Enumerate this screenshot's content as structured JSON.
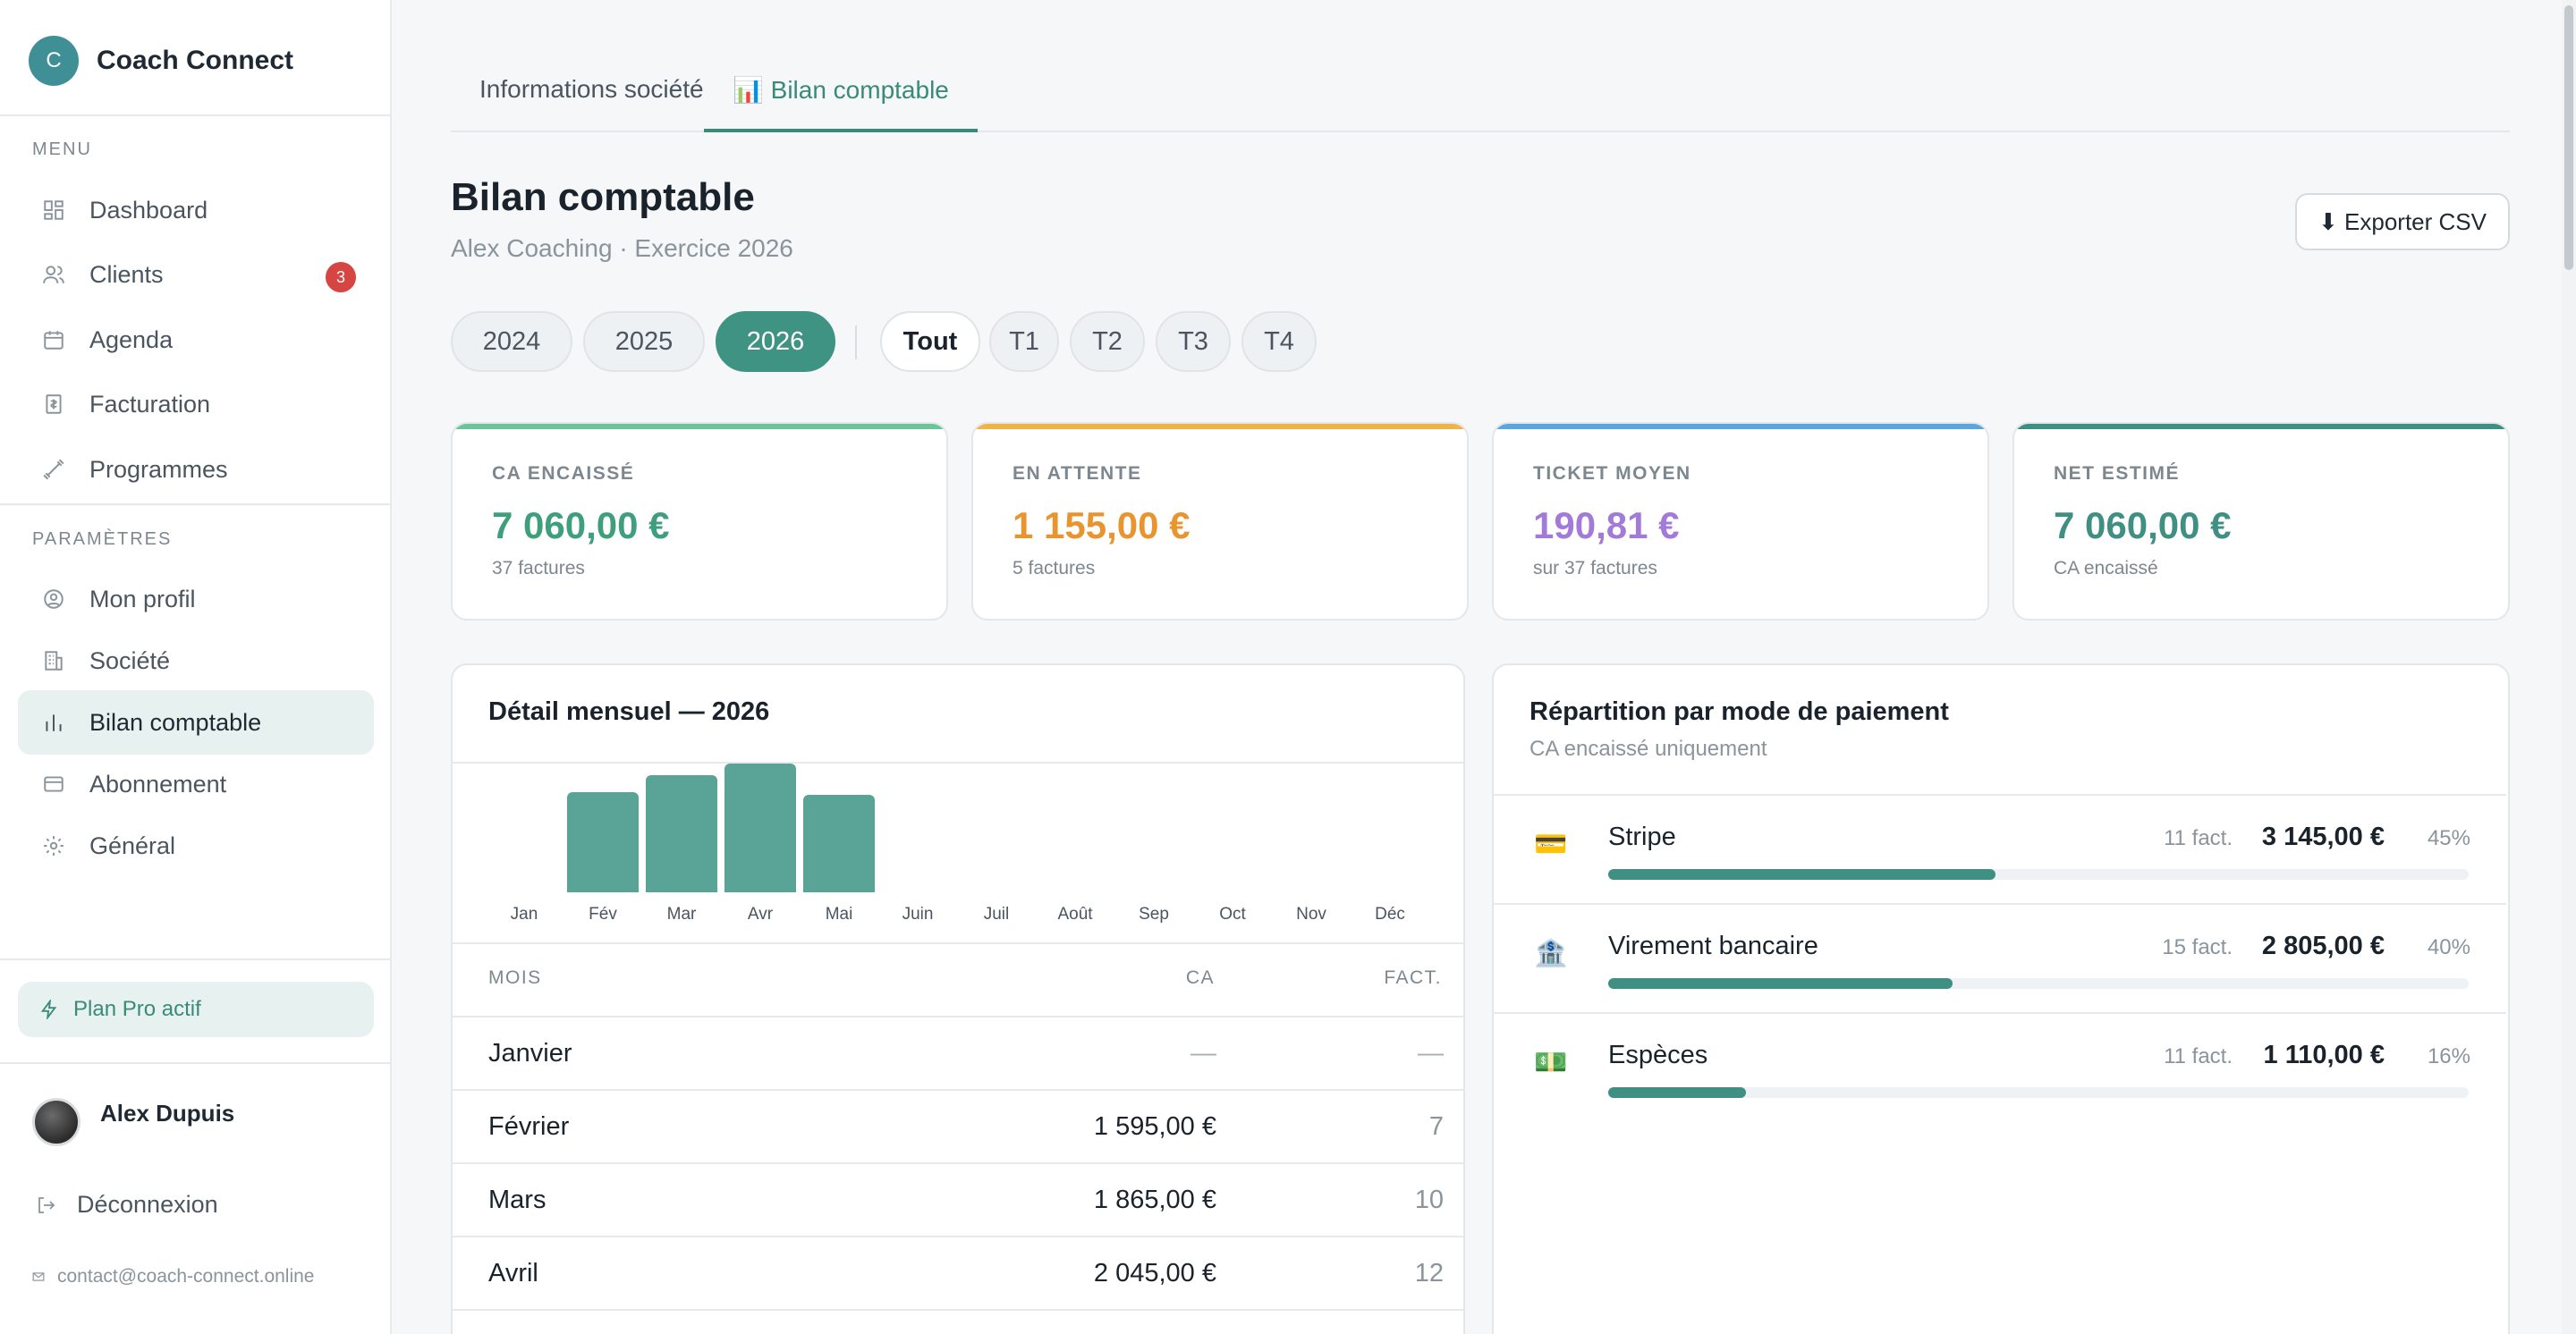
{
  "app": {
    "brand_initial": "C",
    "brand_name": "Coach Connect"
  },
  "sidebar": {
    "menu_label": "MENU",
    "settings_label": "PARAMÈTRES",
    "menu_items": [
      {
        "label": "Dashboard",
        "icon": "dashboard-icon"
      },
      {
        "label": "Clients",
        "icon": "users-icon",
        "badge": "3"
      },
      {
        "label": "Agenda",
        "icon": "calendar-icon"
      },
      {
        "label": "Facturation",
        "icon": "invoice-icon"
      },
      {
        "label": "Programmes",
        "icon": "dumbbell-icon"
      }
    ],
    "settings_items": [
      {
        "label": "Mon profil",
        "icon": "profile-icon"
      },
      {
        "label": "Société",
        "icon": "building-icon"
      },
      {
        "label": "Bilan comptable",
        "icon": "bar-chart-icon",
        "active": true
      },
      {
        "label": "Abonnement",
        "icon": "credit-card-icon"
      },
      {
        "label": "Général",
        "icon": "gear-icon"
      }
    ],
    "plan": "Plan Pro actif",
    "user_name": "Alex Dupuis",
    "logout": "Déconnexion",
    "contact": "contact@coach-connect.online"
  },
  "tabs": [
    {
      "label": "Informations société",
      "active": false
    },
    {
      "label": "📊 Bilan comptable",
      "active": true
    }
  ],
  "header": {
    "title": "Bilan comptable",
    "subtitle": "Alex Coaching · Exercice 2026",
    "export_label": "⬇ Exporter CSV"
  },
  "years": [
    "2024",
    "2025",
    "2026"
  ],
  "selected_year": "2026",
  "periods": [
    "Tout",
    "T1",
    "T2",
    "T3",
    "T4"
  ],
  "selected_period": "Tout",
  "stats": [
    {
      "label": "CA ENCAISSÉ",
      "value": "7 060,00 €",
      "note": "37 factures",
      "color": "#3f9f7c",
      "bar": "#6cc59a"
    },
    {
      "label": "EN ATTENTE",
      "value": "1 155,00 €",
      "note": "5 factures",
      "color": "#e8942f",
      "bar": "#f0b346"
    },
    {
      "label": "TICKET MOYEN",
      "value": "190,81 €",
      "note": "sur 37 factures",
      "color": "#a27ad8",
      "bar": "#5aa6de"
    },
    {
      "label": "NET ESTIMÉ",
      "value": "7 060,00 €",
      "note": "CA encaissé",
      "color": "#3f8f82",
      "bar": "#3f8f82"
    }
  ],
  "monthly": {
    "title": "Détail mensuel — 2026",
    "col_month": "MOIS",
    "col_ca": "CA",
    "col_fact": "FACT.",
    "rows": [
      {
        "month": "Janvier",
        "ca": "—",
        "fact": "—"
      },
      {
        "month": "Février",
        "ca": "1 595,00 €",
        "fact": "7"
      },
      {
        "month": "Mars",
        "ca": "1 865,00 €",
        "fact": "10"
      },
      {
        "month": "Avril",
        "ca": "2 045,00 €",
        "fact": "12"
      }
    ]
  },
  "chart_data": {
    "type": "bar",
    "categories": [
      "Jan",
      "Fév",
      "Mar",
      "Avr",
      "Mai",
      "Juin",
      "Juil",
      "Août",
      "Sep",
      "Oct",
      "Nov",
      "Déc"
    ],
    "values": [
      0,
      1595,
      1865,
      2045,
      1555,
      0,
      0,
      0,
      0,
      0,
      0,
      0
    ],
    "title": "",
    "xlabel": "",
    "ylabel": "",
    "ylim": [
      0,
      2045
    ],
    "color": "#5aa397"
  },
  "payments": {
    "title": "Répartition par mode de paiement",
    "subtitle": "CA encaissé uniquement",
    "rows": [
      {
        "icon": "💳",
        "icon_name": "credit-card-icon",
        "name": "Stripe",
        "count": "11 fact.",
        "amount": "3 145,00 €",
        "pct": "45%",
        "fraction": 0.45
      },
      {
        "icon": "🏦",
        "icon_name": "bank-icon",
        "name": "Virement bancaire",
        "count": "15 fact.",
        "amount": "2 805,00 €",
        "pct": "40%",
        "fraction": 0.4
      },
      {
        "icon": "💵",
        "icon_name": "cash-icon",
        "name": "Espèces",
        "count": "11 fact.",
        "amount": "1 110,00 €",
        "pct": "16%",
        "fraction": 0.16
      }
    ]
  }
}
